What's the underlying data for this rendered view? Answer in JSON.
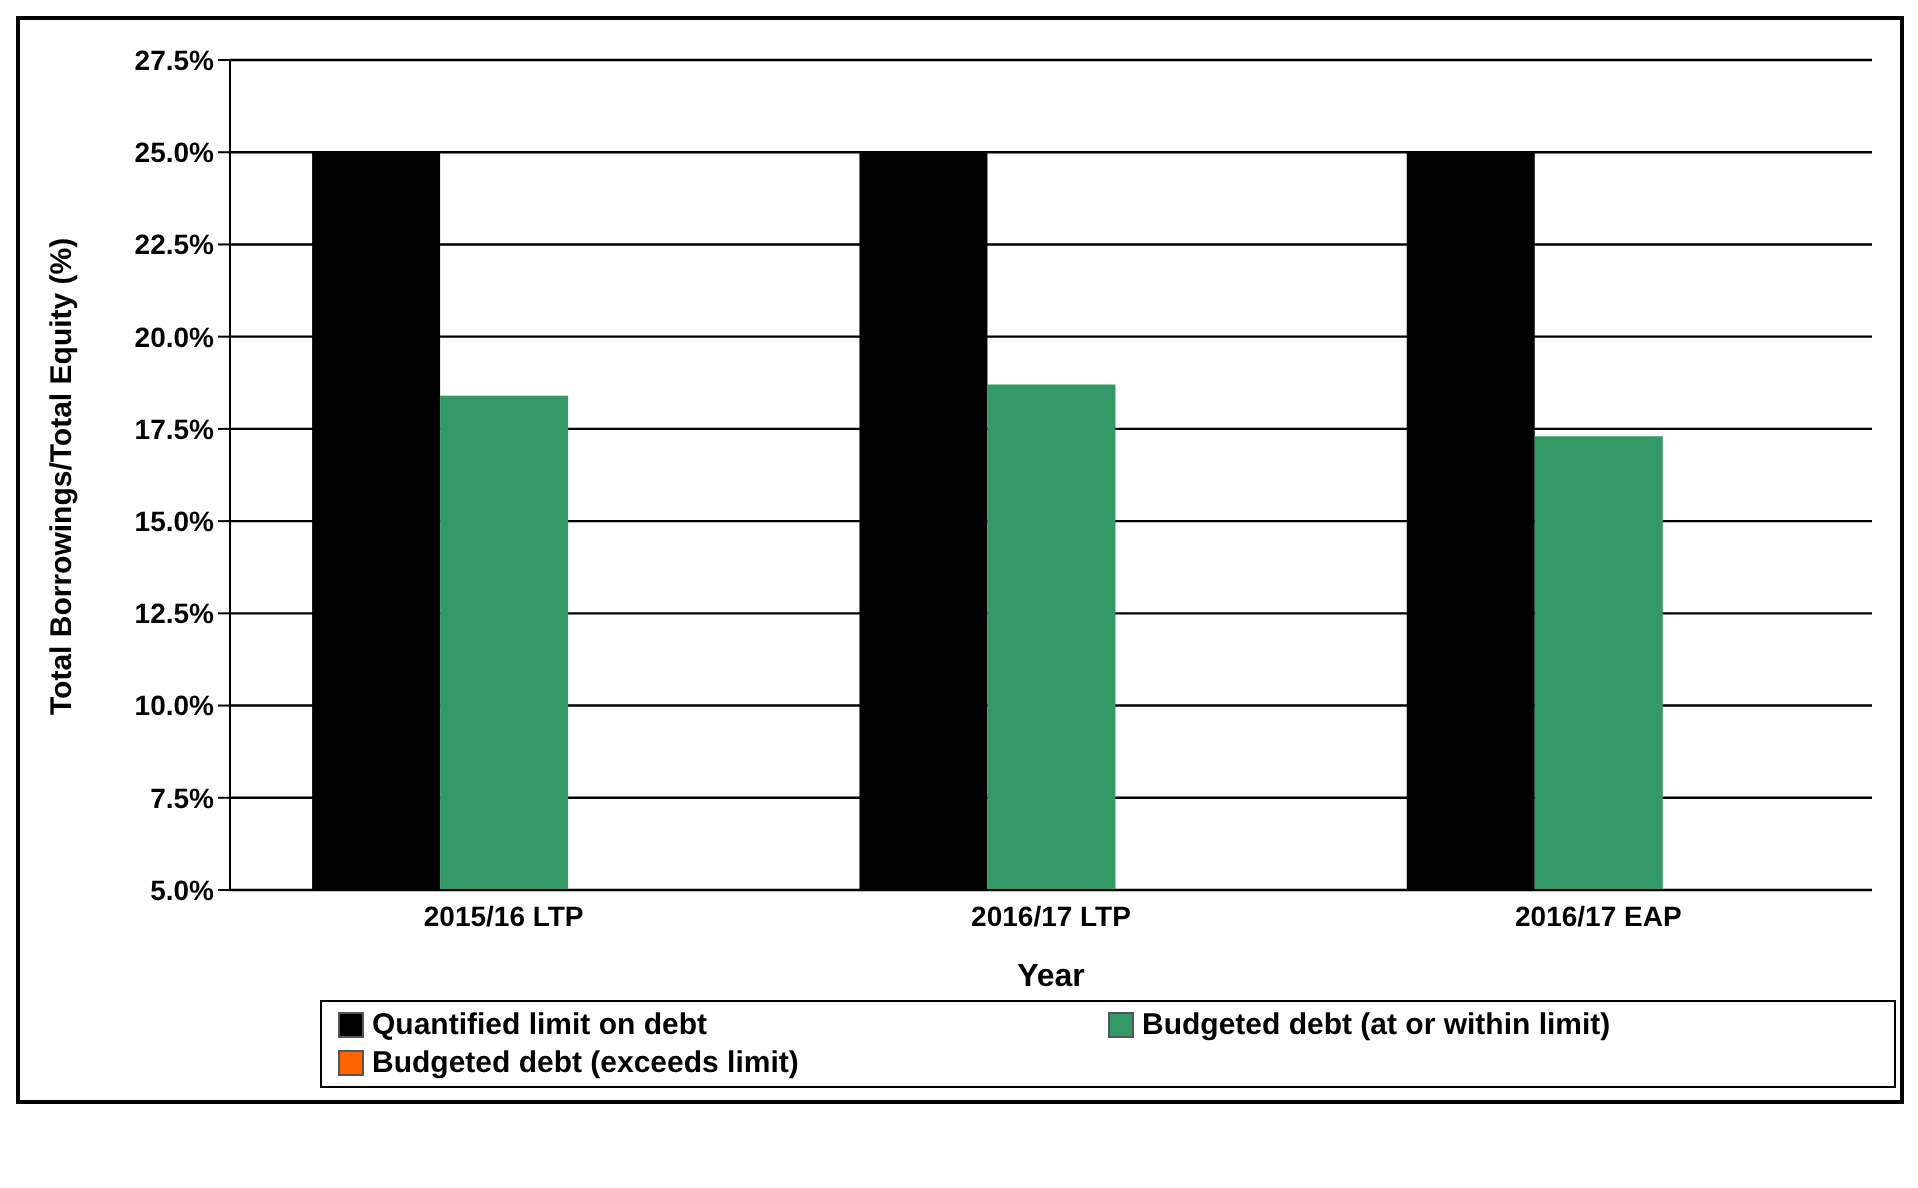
{
  "chart_data": {
    "type": "bar",
    "xlabel": "Year",
    "ylabel": "Total Borrowings/Total Equity (%)",
    "categories": [
      "2015/16 LTP",
      "2016/17 LTP",
      "2016/17 EAP"
    ],
    "series": [
      {
        "name": "Quantified limit on debt",
        "color": "#000000",
        "values": [
          25.0,
          25.0,
          25.0
        ]
      },
      {
        "name": "Budgeted debt (at or within limit)",
        "color": "#339966",
        "values": [
          18.4,
          18.7,
          17.3
        ]
      },
      {
        "name": "Budgeted debt (exceeds limit)",
        "color": "#ff6600",
        "values": [
          null,
          null,
          null
        ]
      }
    ],
    "ylim": [
      5,
      27.5
    ],
    "yticks": [
      {
        "value": 5,
        "label": "5.0%"
      },
      {
        "value": 7.5,
        "label": "7.5%"
      },
      {
        "value": 10,
        "label": "10.0%"
      },
      {
        "value": 12.5,
        "label": "12.5%"
      },
      {
        "value": 15,
        "label": "15.0%"
      },
      {
        "value": 17.5,
        "label": "17.5%"
      },
      {
        "value": 20,
        "label": "20.0%"
      },
      {
        "value": 22.5,
        "label": "22.5%"
      },
      {
        "value": 25,
        "label": "25.0%"
      },
      {
        "value": 27.5,
        "label": "27.5%"
      }
    ],
    "grid": "y",
    "legend": "bottom"
  }
}
